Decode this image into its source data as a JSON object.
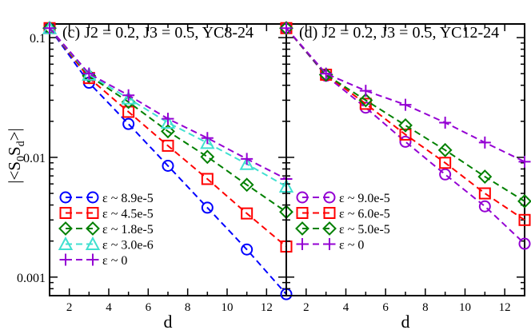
{
  "figure": {
    "ylabel": "|<S0Sd>|",
    "ylabel_parts": {
      "open": "|<S",
      "sub1": "0",
      "mid": "S",
      "sub2": "d",
      "close": ">|"
    },
    "yticks": [
      {
        "value": 0.1,
        "label": "0.1"
      },
      {
        "value": 0.01,
        "label": "0.01"
      },
      {
        "value": 0.001,
        "label": "0.001"
      }
    ]
  },
  "chart_data": [
    {
      "type": "line",
      "title": "(c) J2 = 0.2, J3 = 0.5, YC8-24",
      "xlabel": "d",
      "ylabel": "|<S0Sd>|",
      "yscale": "log",
      "xlim": [
        1,
        13
      ],
      "ylim": [
        0.0007,
        0.13
      ],
      "xticks": [
        2,
        4,
        6,
        8,
        10,
        12
      ],
      "grid": false,
      "legend": "bottom-left",
      "series": [
        {
          "name": "ε ~ 8.9e-5",
          "color": "#0000ff",
          "marker": "circle",
          "x": [
            1,
            3,
            5,
            7,
            9,
            11,
            13
          ],
          "y": [
            0.12,
            0.042,
            0.019,
            0.0085,
            0.0038,
            0.0017,
            0.00072
          ]
        },
        {
          "name": "ε ~ 4.5e-5",
          "color": "#ff0000",
          "marker": "square",
          "x": [
            1,
            3,
            5,
            7,
            9,
            11,
            13
          ],
          "y": [
            0.12,
            0.046,
            0.024,
            0.0125,
            0.0066,
            0.0034,
            0.0018
          ]
        },
        {
          "name": "ε ~ 1.8e-5",
          "color": "#008000",
          "marker": "diamond",
          "x": [
            1,
            3,
            5,
            7,
            9,
            11,
            13
          ],
          "y": [
            0.12,
            0.048,
            0.029,
            0.0165,
            0.0101,
            0.0059,
            0.0035
          ]
        },
        {
          "name": "ε ~ 3.0e-6",
          "color": "#40e0d0",
          "marker": "triangle",
          "x": [
            1,
            3,
            5,
            7,
            9,
            11,
            13
          ],
          "y": [
            0.12,
            0.049,
            0.031,
            0.0195,
            0.0132,
            0.0088,
            0.0057
          ]
        },
        {
          "name": "ε ~ 0",
          "color": "#9400d3",
          "marker": "plus",
          "x": [
            1,
            3,
            5,
            7,
            9,
            11,
            13
          ],
          "y": [
            0.12,
            0.05,
            0.033,
            0.021,
            0.0145,
            0.0097,
            0.0066
          ]
        }
      ]
    },
    {
      "type": "line",
      "title": "(d) J2  = 0.2, J3  = 0.5, YC12-24",
      "xlabel": "d",
      "yscale": "log",
      "xlim": [
        1,
        13
      ],
      "ylim": [
        0.0007,
        0.13
      ],
      "xticks": [
        2,
        4,
        6,
        8,
        10,
        12
      ],
      "grid": false,
      "legend": "bottom-left",
      "series": [
        {
          "name": "ε ~ 9.0e-5",
          "color": "#9400d3",
          "marker": "circle",
          "x": [
            1,
            3,
            5,
            7,
            9,
            11,
            13
          ],
          "y": [
            0.12,
            0.048,
            0.026,
            0.0135,
            0.0072,
            0.0039,
            0.0019
          ]
        },
        {
          "name": "ε ~ 6.0e-5",
          "color": "#ff0000",
          "marker": "square",
          "x": [
            1,
            3,
            5,
            7,
            9,
            11,
            13
          ],
          "y": [
            0.12,
            0.049,
            0.028,
            0.0155,
            0.009,
            0.005,
            0.003
          ]
        },
        {
          "name": "ε ~ 5.0e-5",
          "color": "#008000",
          "marker": "diamond",
          "x": [
            1,
            3,
            5,
            7,
            9,
            11,
            13
          ],
          "y": [
            0.12,
            0.049,
            0.03,
            0.0185,
            0.0115,
            0.0069,
            0.0043
          ]
        },
        {
          "name": "ε ~ 0",
          "color": "#9400d3",
          "marker": "plus",
          "x": [
            1,
            3,
            5,
            7,
            9,
            11,
            13
          ],
          "y": [
            0.12,
            0.05,
            0.036,
            0.0275,
            0.0195,
            0.0133,
            0.0092
          ]
        }
      ]
    }
  ]
}
